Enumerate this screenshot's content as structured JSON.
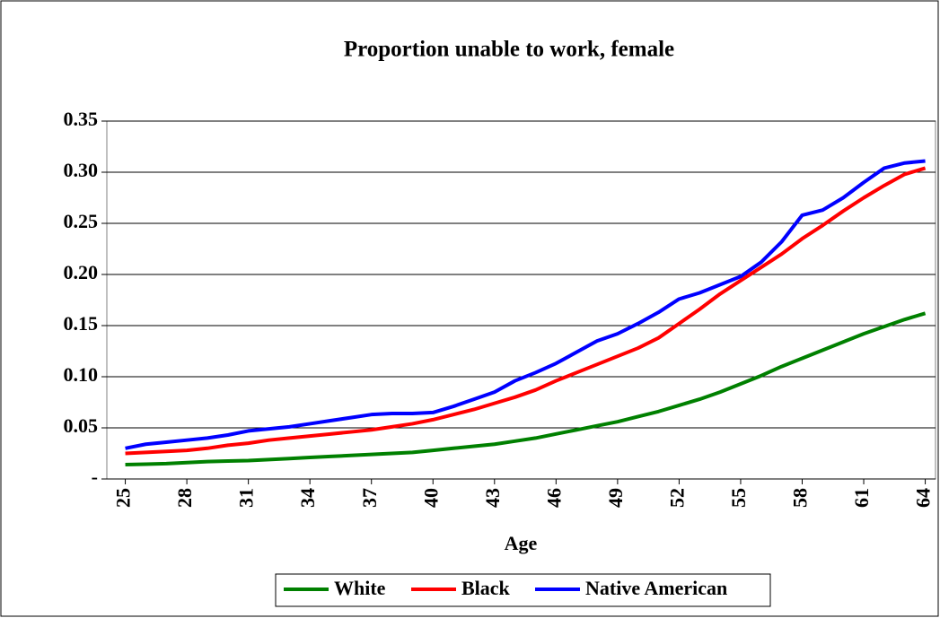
{
  "chart_data": {
    "type": "line",
    "title": "Proportion unable to work, female",
    "x_label": "Age",
    "x": [
      25,
      26,
      27,
      28,
      29,
      30,
      31,
      32,
      33,
      34,
      35,
      36,
      37,
      38,
      39,
      40,
      41,
      42,
      43,
      44,
      45,
      46,
      47,
      48,
      49,
      50,
      51,
      52,
      53,
      54,
      55,
      56,
      57,
      58,
      59,
      60,
      61,
      62,
      63,
      64
    ],
    "xlim": [
      24.1,
      64.5
    ],
    "xticks": [
      25,
      28,
      31,
      34,
      37,
      40,
      43,
      46,
      49,
      52,
      55,
      58,
      61,
      64
    ],
    "ylim": [
      0,
      0.35
    ],
    "yticks": [
      {
        "value": 0,
        "label": "-"
      },
      {
        "value": 0.05,
        "label": "0.05"
      },
      {
        "value": 0.1,
        "label": "0.10"
      },
      {
        "value": 0.15,
        "label": "0.15"
      },
      {
        "value": 0.2,
        "label": "0.20"
      },
      {
        "value": 0.25,
        "label": "0.25"
      },
      {
        "value": 0.3,
        "label": "0.30"
      },
      {
        "value": 0.35,
        "label": "0.35"
      }
    ],
    "grid": true,
    "legend": "bottom",
    "series": [
      {
        "name": "White",
        "color": "#008000",
        "values": [
          0.014,
          0.0145,
          0.015,
          0.016,
          0.017,
          0.0175,
          0.018,
          0.019,
          0.02,
          0.021,
          0.022,
          0.023,
          0.024,
          0.025,
          0.026,
          0.028,
          0.03,
          0.032,
          0.034,
          0.037,
          0.04,
          0.044,
          0.048,
          0.052,
          0.056,
          0.061,
          0.066,
          0.072,
          0.078,
          0.085,
          0.093,
          0.101,
          0.11,
          0.118,
          0.126,
          0.134,
          0.142,
          0.149,
          0.156,
          0.162
        ]
      },
      {
        "name": "Black",
        "color": "#ff0000",
        "values": [
          0.025,
          0.026,
          0.027,
          0.028,
          0.03,
          0.033,
          0.035,
          0.038,
          0.04,
          0.042,
          0.044,
          0.046,
          0.048,
          0.051,
          0.054,
          0.058,
          0.063,
          0.068,
          0.074,
          0.08,
          0.087,
          0.096,
          0.104,
          0.112,
          0.12,
          0.128,
          0.138,
          0.152,
          0.166,
          0.181,
          0.194,
          0.207,
          0.22,
          0.235,
          0.248,
          0.262,
          0.275,
          0.287,
          0.298,
          0.304
        ]
      },
      {
        "name": "Native American",
        "color": "#0000ff",
        "values": [
          0.03,
          0.034,
          0.036,
          0.038,
          0.04,
          0.043,
          0.047,
          0.049,
          0.051,
          0.054,
          0.057,
          0.06,
          0.063,
          0.064,
          0.064,
          0.065,
          0.071,
          0.078,
          0.085,
          0.096,
          0.104,
          0.113,
          0.124,
          0.135,
          0.142,
          0.152,
          0.163,
          0.176,
          0.182,
          0.19,
          0.198,
          0.212,
          0.232,
          0.258,
          0.263,
          0.275,
          0.29,
          0.304,
          0.309,
          0.311
        ]
      }
    ]
  }
}
